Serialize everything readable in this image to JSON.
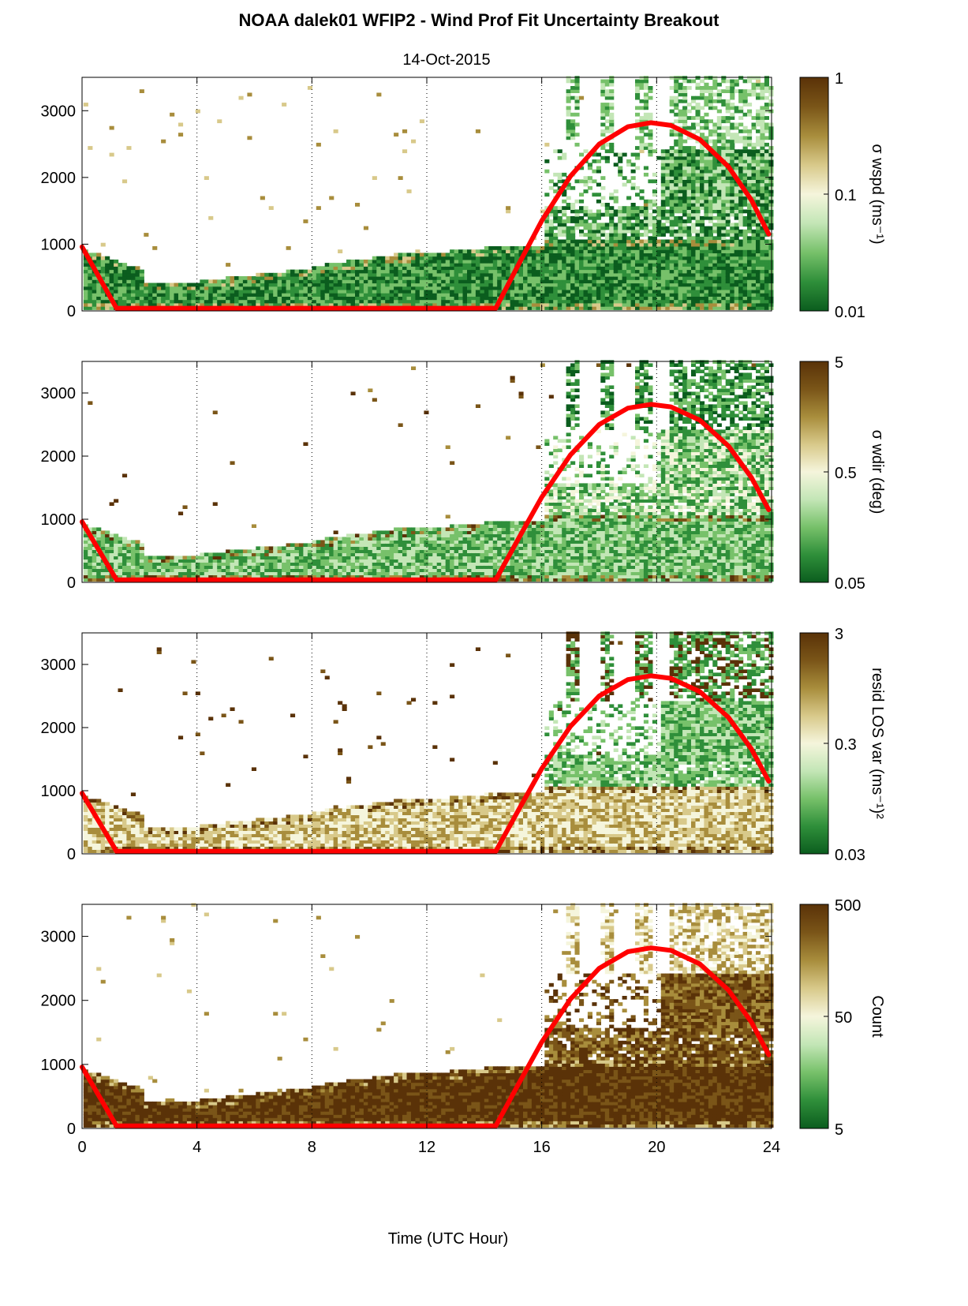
{
  "figure": {
    "title": "NOAA dalek01 WFIP2 - Wind Prof Fit Uncertainty Breakout",
    "subtitle": "14-Oct-2015",
    "xlabel": "Time (UTC Hour)"
  },
  "colors": {
    "curve": "#ff0000",
    "colormap": [
      "#0b5d1e",
      "#2f8f3a",
      "#77c16a",
      "#c3e6b6",
      "#f5f5dc",
      "#d8c98a",
      "#a88d3c",
      "#7a5518",
      "#5a3208"
    ]
  },
  "chart_data": [
    {
      "type": "heatmap",
      "xlim": [
        0,
        24
      ],
      "ylim": [
        0,
        3500
      ],
      "xticks": [
        0,
        4,
        8,
        12,
        16,
        20,
        24
      ],
      "yticks": [
        0,
        1000,
        2000,
        3000
      ],
      "ytick_labels": [
        "0",
        "1000",
        "2000",
        "3000"
      ],
      "gridlines_x": [
        4,
        8,
        12,
        16,
        20
      ],
      "colorbar": {
        "label": "σ wspd (ms⁻¹)",
        "scale": "log",
        "ticks": [
          "0.01",
          "0.1",
          "1"
        ]
      },
      "curve": {
        "x": [
          0,
          1.2,
          14.4,
          15.2,
          16,
          17,
          18,
          19,
          19.8,
          20.5,
          21.5,
          22.5,
          23.3,
          23.9
        ],
        "y": [
          960,
          40,
          40,
          700,
          1350,
          2020,
          2500,
          2760,
          2820,
          2780,
          2570,
          2160,
          1660,
          1150
        ]
      }
    },
    {
      "type": "heatmap",
      "xlim": [
        0,
        24
      ],
      "ylim": [
        0,
        3500
      ],
      "xticks": [
        0,
        4,
        8,
        12,
        16,
        20,
        24
      ],
      "yticks": [
        0,
        1000,
        2000,
        3000
      ],
      "ytick_labels": [
        "0",
        "1000",
        "2000",
        "3000"
      ],
      "gridlines_x": [
        4,
        8,
        12,
        16,
        20
      ],
      "colorbar": {
        "label": "σ wdir (deg)",
        "scale": "log",
        "ticks": [
          "0.05",
          "0.5",
          "5"
        ]
      },
      "curve": {
        "x": [
          0,
          1.2,
          14.4,
          15.2,
          16,
          17,
          18,
          19,
          19.8,
          20.5,
          21.5,
          22.5,
          23.3,
          23.9
        ],
        "y": [
          960,
          40,
          40,
          700,
          1350,
          2020,
          2500,
          2760,
          2820,
          2780,
          2570,
          2160,
          1660,
          1150
        ]
      }
    },
    {
      "type": "heatmap",
      "xlim": [
        0,
        24
      ],
      "ylim": [
        0,
        3500
      ],
      "xticks": [
        0,
        4,
        8,
        12,
        16,
        20,
        24
      ],
      "yticks": [
        0,
        1000,
        2000,
        3000
      ],
      "ytick_labels": [
        "0",
        "1000",
        "2000",
        "3000"
      ],
      "gridlines_x": [
        4,
        8,
        12,
        16,
        20
      ],
      "colorbar": {
        "label": "resid LOS var (ms⁻¹)²",
        "scale": "log",
        "ticks": [
          "0.03",
          "0.3",
          "3"
        ]
      },
      "curve": {
        "x": [
          0,
          1.2,
          14.4,
          15.2,
          16,
          17,
          18,
          19,
          19.8,
          20.5,
          21.5,
          22.5,
          23.3,
          23.9
        ],
        "y": [
          960,
          40,
          40,
          700,
          1350,
          2020,
          2500,
          2760,
          2820,
          2780,
          2570,
          2160,
          1660,
          1150
        ]
      }
    },
    {
      "type": "heatmap",
      "xlim": [
        0,
        24
      ],
      "ylim": [
        0,
        3500
      ],
      "xticks": [
        0,
        4,
        8,
        12,
        16,
        20,
        24
      ],
      "yticks": [
        0,
        1000,
        2000,
        3000
      ],
      "ytick_labels": [
        "0",
        "1000",
        "2000",
        "3000"
      ],
      "gridlines_x": [
        4,
        8,
        12,
        16,
        20
      ],
      "colorbar": {
        "label": "Count",
        "scale": "log",
        "ticks": [
          "5",
          "50",
          "500"
        ]
      },
      "curve": {
        "x": [
          0,
          1.2,
          14.4,
          15.2,
          16,
          17,
          18,
          19,
          19.8,
          20.5,
          21.5,
          22.5,
          23.3,
          23.9
        ],
        "y": [
          960,
          40,
          40,
          700,
          1350,
          2020,
          2500,
          2760,
          2820,
          2780,
          2570,
          2160,
          1660,
          1150
        ]
      }
    }
  ]
}
